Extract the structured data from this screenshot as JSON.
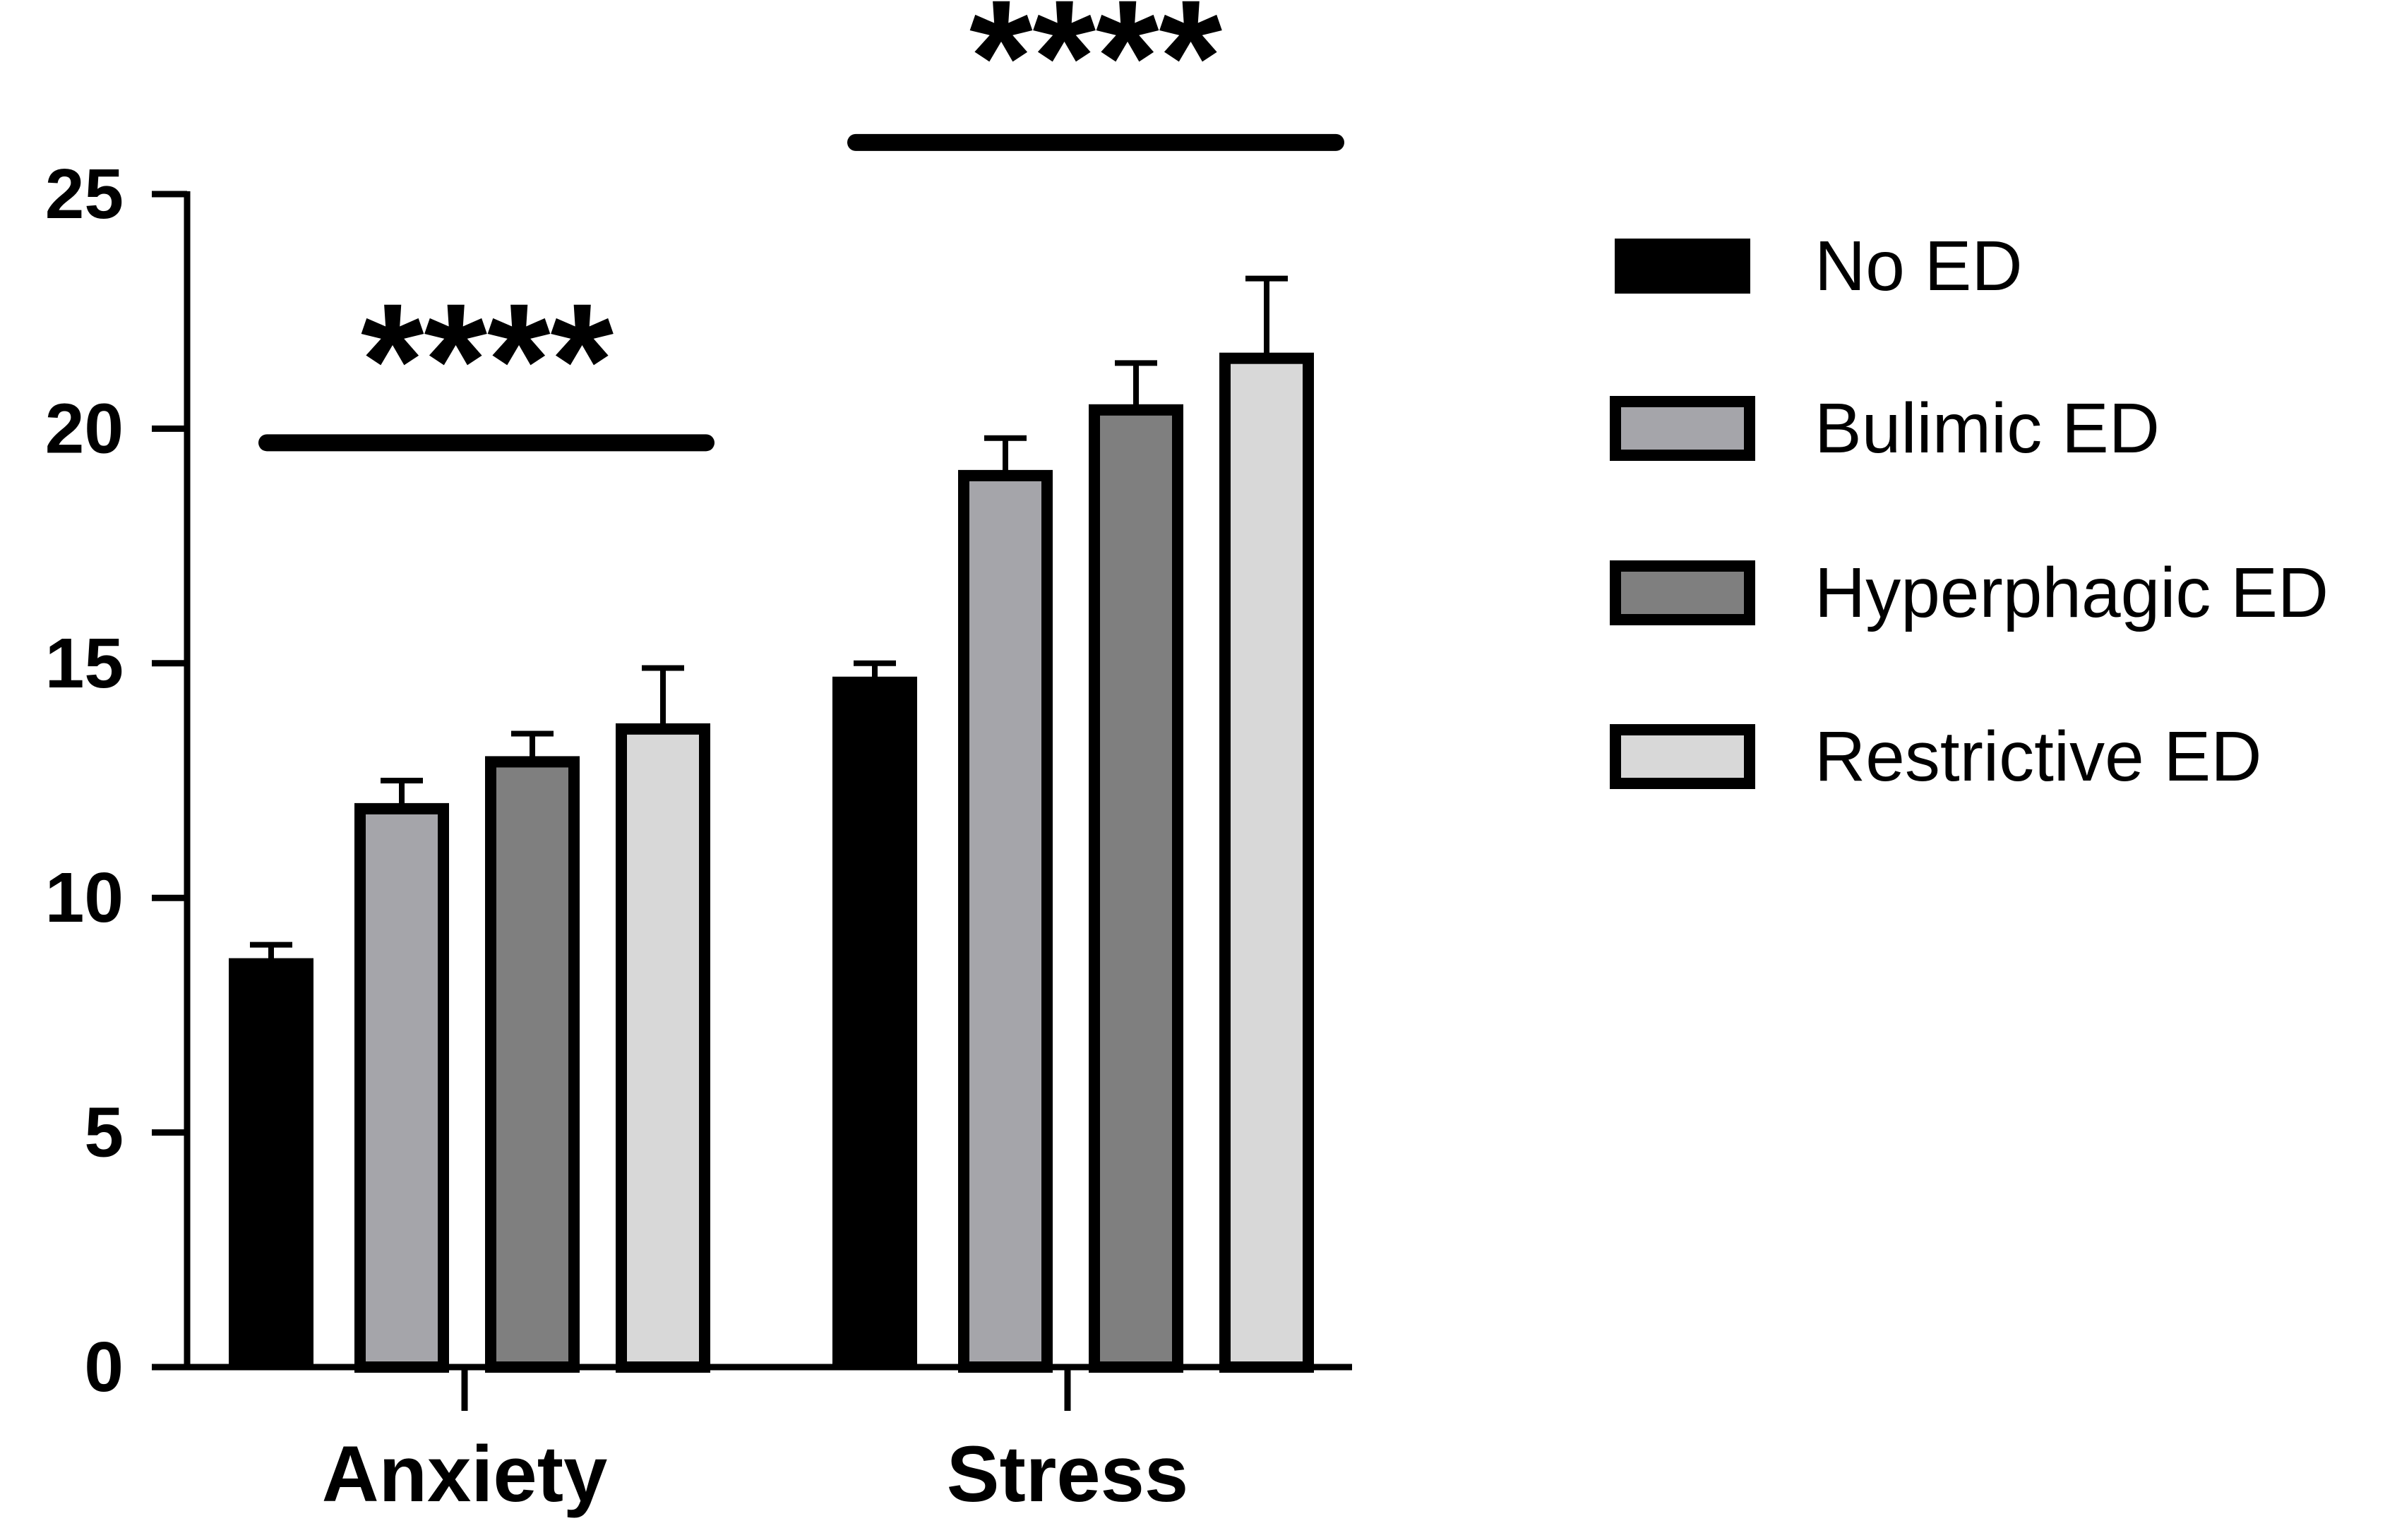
{
  "chart_data": {
    "type": "bar",
    "categories": [
      "Anxiety",
      "Stress"
    ],
    "series": [
      {
        "name": "No ED",
        "color": "#000000",
        "values": [
          8.7,
          14.7
        ],
        "errors": [
          0.3,
          0.3
        ]
      },
      {
        "name": "Bulimic ED",
        "color": "#a5a5aa",
        "values": [
          11.9,
          19.0
        ],
        "errors": [
          0.6,
          0.8
        ]
      },
      {
        "name": "Hyperphagic ED",
        "color": "#7f7f7f",
        "values": [
          12.9,
          20.4
        ],
        "errors": [
          0.6,
          1.0
        ]
      },
      {
        "name": "Restrictive ED",
        "color": "#d8d8d8",
        "values": [
          13.6,
          21.5
        ],
        "errors": [
          1.3,
          1.7
        ]
      }
    ],
    "ylim": [
      0,
      25
    ],
    "yticks": [
      0,
      5,
      10,
      15,
      20,
      25
    ],
    "ytick_labels": [
      "0",
      "5",
      "10",
      "15",
      "20",
      "25"
    ],
    "legend_position": "right",
    "significance": [
      {
        "category": "Anxiety",
        "label": "****",
        "y": 19.7
      },
      {
        "category": "Stress",
        "label": "****",
        "y": 26.1
      }
    ],
    "title": "",
    "xlabel": "",
    "ylabel": ""
  }
}
